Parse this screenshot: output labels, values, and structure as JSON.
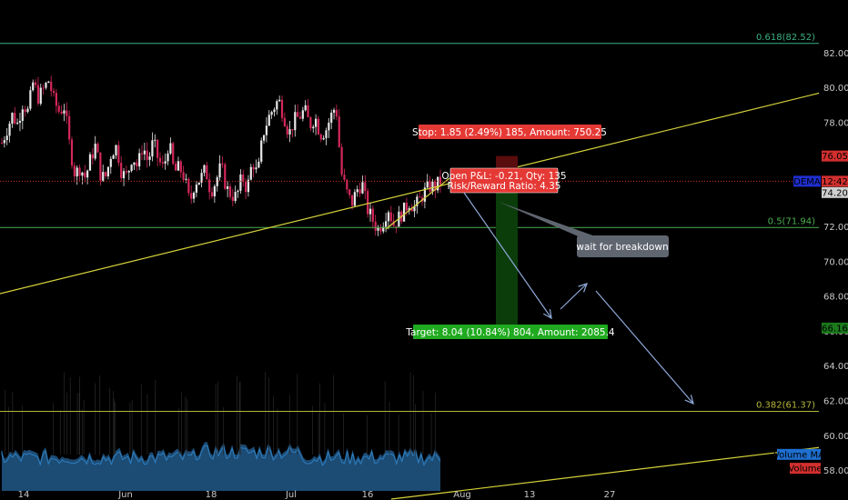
{
  "chart_data": {
    "type": "candlestick",
    "y_axis": {
      "range": [
        56.8,
        84.6
      ],
      "ticks": [
        "82.00",
        "80.00",
        "78.00",
        "76.00",
        "74.00",
        "72.00",
        "70.00",
        "68.00",
        "66.00",
        "64.00",
        "62.00",
        "60.00",
        "58.00"
      ]
    },
    "x_axis": {
      "ticks": [
        "14",
        "Jun",
        "18",
        "Jul",
        "16",
        "Aug",
        "13",
        "27"
      ]
    },
    "fib_levels": [
      {
        "label": "0.618(82.52)",
        "value": 82.52,
        "color": "#3bb083"
      },
      {
        "label": "0.5(71.94)",
        "value": 71.94,
        "color": "#4caf50"
      },
      {
        "label": "0.382(61.37)",
        "value": 61.37,
        "color": "#b5b63a"
      }
    ],
    "price_markers": [
      {
        "label": "76.05",
        "value": 76.05,
        "color": "#d32f2f",
        "text_color": "#ffffff"
      },
      {
        "label": "12:42",
        "value": 74.6,
        "color": "#d32f2f",
        "text_color": "#ffffff"
      },
      {
        "label": "DEMA",
        "value": 74.6,
        "color": "#1f2fd0",
        "text_color": "#ffffff"
      },
      {
        "label": "74.20",
        "value": 73.95,
        "color": "#cfcfcf",
        "text_color": "#000000"
      },
      {
        "label": "66.16",
        "value": 66.16,
        "color": "#1b7a1b",
        "text_color": "#ffffff"
      },
      {
        "label": "Volume MA",
        "value": 58.9,
        "color": "#1e6fd0",
        "text_color": "#ffffff"
      },
      {
        "label": "Volume",
        "value": 58.1,
        "color": "#d32f2f",
        "text_color": "#ffffff"
      }
    ],
    "position": {
      "entry": 74.2,
      "stop_label": "Stop: 1.85 (2.49%) 185, Amount: 750.25",
      "target_label": "Target: 8.04 (10.84%) 804, Amount: 2085.4",
      "pnl_line1": "Open P&L: -0.21, Qty: 135",
      "pnl_line2": "Risk/Reward Ratio: 4.35"
    },
    "annotation": "wait for breakdown",
    "price_series": [
      76.8,
      77.6,
      78.4,
      77.9,
      79.1,
      78.6,
      80.3,
      79.4,
      79.9,
      80.4,
      79.2,
      78.6,
      78.9,
      76.6,
      75.0,
      75.4,
      74.8,
      75.9,
      76.7,
      74.8,
      74.9,
      76.3,
      76.6,
      75.0,
      74.9,
      76.1,
      75.4,
      76.7,
      75.7,
      76.9,
      75.8,
      75.3,
      76.9,
      75.1,
      75.4,
      74.8,
      73.3,
      74.6,
      74.7,
      75.3,
      74.0,
      74.6,
      75.5,
      74.2,
      73.8,
      73.7,
      74.9,
      74.1,
      75.8,
      74.9,
      77.3,
      78.2,
      78.8,
      79.3,
      78.4,
      77.3,
      78.1,
      78.3,
      78.7,
      77.8,
      78.3,
      77.3,
      77.5,
      78.3,
      79.0,
      75.1,
      74.0,
      73.3,
      74.1,
      74.5,
      73.0,
      72.4,
      71.8,
      72.3,
      73.1,
      72.1,
      72.5,
      72.9,
      73.4,
      73.1,
      73.5,
      74.0,
      74.3,
      74.3,
      74.6
    ]
  }
}
